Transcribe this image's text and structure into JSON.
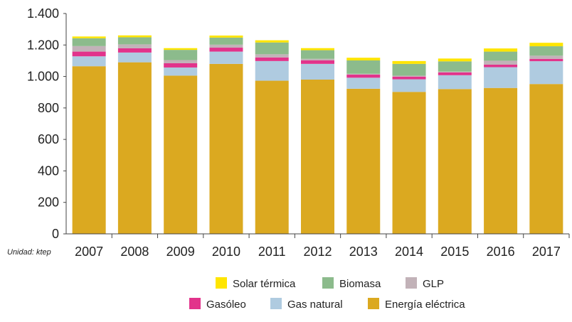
{
  "chart_data": {
    "type": "bar",
    "stacked": true,
    "title": "",
    "xlabel": "",
    "ylabel": "",
    "unit_note": "Unidad: ktep",
    "ylim": [
      0,
      1400
    ],
    "yticks": [
      0,
      200,
      400,
      600,
      800,
      1000,
      1200,
      1400
    ],
    "ytick_labels": [
      "0",
      "200",
      "400",
      "600",
      "800",
      "1.000",
      "1.200",
      "1.400"
    ],
    "categories": [
      "2007",
      "2008",
      "2009",
      "2010",
      "2011",
      "2012",
      "2013",
      "2014",
      "2015",
      "2016",
      "2017"
    ],
    "legend_position": "bottom",
    "series": [
      {
        "name": "Energía eléctrica",
        "color": "#DBA920",
        "values": [
          1065,
          1090,
          1005,
          1080,
          973,
          980,
          922,
          902,
          920,
          927,
          952
        ]
      },
      {
        "name": "Gas natural",
        "color": "#AFCBE0",
        "values": [
          63,
          62,
          52,
          78,
          125,
          100,
          70,
          80,
          88,
          132,
          145
        ]
      },
      {
        "name": "Gasóleo",
        "color": "#E2338B",
        "values": [
          30,
          27,
          27,
          25,
          23,
          22,
          20,
          17,
          18,
          16,
          15
        ]
      },
      {
        "name": "GLP",
        "color": "#C2B2B8",
        "values": [
          35,
          25,
          20,
          19,
          20,
          10,
          5,
          6,
          5,
          25,
          20
        ]
      },
      {
        "name": "Biomasa",
        "color": "#8CBB8C",
        "values": [
          50,
          45,
          65,
          45,
          75,
          55,
          85,
          75,
          65,
          58,
          60
        ]
      },
      {
        "name": "Solar térmica",
        "color": "#FFE500",
        "values": [
          11,
          12,
          11,
          13,
          14,
          13,
          17,
          18,
          18,
          20,
          22
        ]
      }
    ],
    "legend_rows": [
      [
        "Solar térmica",
        "Biomasa",
        "GLP"
      ],
      [
        "Gasóleo",
        "Gas natural",
        "Energía eléctrica"
      ]
    ]
  }
}
